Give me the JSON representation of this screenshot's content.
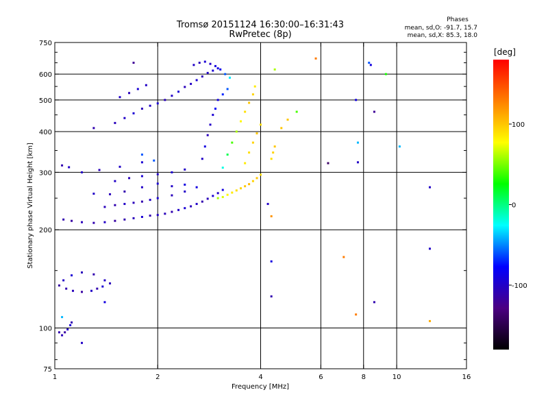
{
  "header": {
    "title_line1": "Tromsø 20151124 16:30:00–16:31:43",
    "title_line2": "RwPretec (8p)"
  },
  "stats": {
    "heading": "Phases",
    "line_o": "mean, sd,O: -91.7, 15.7",
    "line_x": "mean, sd,X:  85.3, 18.0"
  },
  "colorbar": {
    "unit_label": "[deg]",
    "ticks": [
      {
        "value": 100,
        "label": "100"
      },
      {
        "value": 0,
        "label": "0"
      },
      {
        "value": -100,
        "label": "-100"
      }
    ],
    "range": [
      -180,
      180
    ],
    "colors": [
      "#000000",
      "#4b0082",
      "#0000ff",
      "#00ffff",
      "#00ff00",
      "#ffff00",
      "#ff7f00",
      "#ff0000"
    ]
  },
  "chart_data": {
    "type": "scatter",
    "title": "Tromsø 20151124 16:30:00–16:31:43",
    "subtitle": "RwPretec (8p)",
    "xlabel": "Frequency [MHz]",
    "ylabel": "Stationary phase Virtual Height [km]",
    "x_scale": "log",
    "y_scale": "log",
    "xlim": [
      1,
      16
    ],
    "ylim": [
      75,
      750
    ],
    "xticks": [
      {
        "value": 1,
        "label": "1"
      },
      {
        "value": 2,
        "label": "2"
      },
      {
        "value": 4,
        "label": "4"
      },
      {
        "value": 6,
        "label": "6"
      },
      {
        "value": 8,
        "label": "8"
      },
      {
        "value": 10,
        "label": "10"
      },
      {
        "value": 16,
        "label": "16"
      }
    ],
    "xgrid": [
      2,
      4,
      6,
      8,
      10
    ],
    "yticks": [
      {
        "value": 75,
        "label": "75"
      },
      {
        "value": 100,
        "label": "100"
      },
      {
        "value": 200,
        "label": "200"
      },
      {
        "value": 300,
        "label": "300"
      },
      {
        "value": 400,
        "label": "400"
      },
      {
        "value": 500,
        "label": "500"
      },
      {
        "value": 600,
        "label": "600"
      },
      {
        "value": 750,
        "label": "750"
      }
    ],
    "ygrid": [
      100,
      200,
      300,
      400,
      500,
      600
    ],
    "color_by": "phase [deg]",
    "points": [
      [
        1.03,
        97,
        -110
      ],
      [
        1.05,
        95,
        -105
      ],
      [
        1.07,
        97,
        -115
      ],
      [
        1.09,
        99,
        -100
      ],
      [
        1.11,
        102,
        -95
      ],
      [
        1.12,
        104,
        -110
      ],
      [
        1.03,
        135,
        -115
      ],
      [
        1.08,
        132,
        -110
      ],
      [
        1.13,
        130,
        -105
      ],
      [
        1.2,
        129,
        -115
      ],
      [
        1.28,
        130,
        -100
      ],
      [
        1.33,
        132,
        -110
      ],
      [
        1.38,
        134,
        -95
      ],
      [
        1.45,
        137,
        -105
      ],
      [
        1.06,
        140,
        -100
      ],
      [
        1.12,
        145,
        -95
      ],
      [
        1.2,
        148,
        -105
      ],
      [
        1.3,
        146,
        -110
      ],
      [
        1.4,
        140,
        -100
      ],
      [
        1.06,
        215,
        -110
      ],
      [
        1.12,
        213,
        -115
      ],
      [
        1.2,
        211,
        -105
      ],
      [
        1.3,
        210,
        -110
      ],
      [
        1.4,
        211,
        -100
      ],
      [
        1.5,
        213,
        -115
      ],
      [
        1.6,
        215,
        -110
      ],
      [
        1.7,
        217,
        -105
      ],
      [
        1.8,
        219,
        -95
      ],
      [
        1.9,
        221,
        -110
      ],
      [
        2.0,
        222,
        -100
      ],
      [
        2.1,
        224,
        -105
      ],
      [
        2.2,
        227,
        -110
      ],
      [
        2.3,
        230,
        -100
      ],
      [
        2.4,
        233,
        -95
      ],
      [
        2.5,
        236,
        -105
      ],
      [
        2.6,
        240,
        -100
      ],
      [
        2.7,
        244,
        -110
      ],
      [
        2.8,
        249,
        -105
      ],
      [
        2.9,
        254,
        -95
      ],
      [
        3.0,
        259,
        -100
      ],
      [
        3.1,
        265,
        -90
      ],
      [
        1.4,
        235,
        -105
      ],
      [
        1.5,
        238,
        -110
      ],
      [
        1.6,
        240,
        -100
      ],
      [
        1.7,
        242,
        -105
      ],
      [
        1.8,
        244,
        -110
      ],
      [
        1.9,
        247,
        -100
      ],
      [
        2.0,
        250,
        -95
      ],
      [
        2.2,
        255,
        -105
      ],
      [
        2.4,
        262,
        -100
      ],
      [
        2.6,
        270,
        -90
      ],
      [
        1.3,
        258,
        -100
      ],
      [
        1.45,
        257,
        -105
      ],
      [
        1.6,
        262,
        -110
      ],
      [
        1.8,
        270,
        -100
      ],
      [
        2.0,
        277,
        -95
      ],
      [
        2.2,
        272,
        -100
      ],
      [
        2.4,
        275,
        -90
      ],
      [
        1.5,
        282,
        -100
      ],
      [
        1.65,
        288,
        -105
      ],
      [
        1.8,
        292,
        -95
      ],
      [
        2.0,
        296,
        -100
      ],
      [
        2.2,
        300,
        -95
      ],
      [
        2.4,
        306,
        -100
      ],
      [
        1.05,
        315,
        -110
      ],
      [
        1.1,
        311,
        -100
      ],
      [
        1.35,
        305,
        -105
      ],
      [
        1.55,
        312,
        -100
      ],
      [
        1.8,
        322,
        -95
      ],
      [
        1.95,
        326,
        -60
      ],
      [
        1.5,
        425,
        -105
      ],
      [
        1.6,
        440,
        -100
      ],
      [
        1.7,
        455,
        -95
      ],
      [
        1.8,
        470,
        -105
      ],
      [
        1.9,
        480,
        -100
      ],
      [
        2.0,
        488,
        -95
      ],
      [
        2.1,
        500,
        -105
      ],
      [
        2.2,
        515,
        -100
      ],
      [
        2.3,
        530,
        -95
      ],
      [
        2.4,
        548,
        -105
      ],
      [
        2.5,
        560,
        -100
      ],
      [
        2.6,
        575,
        -95
      ],
      [
        2.7,
        590,
        -105
      ],
      [
        2.8,
        605,
        -100
      ],
      [
        2.9,
        615,
        -95
      ],
      [
        3.0,
        625,
        -90
      ],
      [
        1.55,
        510,
        -100
      ],
      [
        1.65,
        525,
        -105
      ],
      [
        1.75,
        540,
        -95
      ],
      [
        1.85,
        555,
        -100
      ],
      [
        2.55,
        640,
        -100
      ],
      [
        2.65,
        650,
        -105
      ],
      [
        2.75,
        655,
        -95
      ],
      [
        2.85,
        645,
        -100
      ],
      [
        2.95,
        635,
        -90
      ],
      [
        3.05,
        620,
        -85
      ],
      [
        3.15,
        600,
        -60
      ],
      [
        3.25,
        585,
        -30
      ],
      [
        2.7,
        330,
        -100
      ],
      [
        2.75,
        360,
        -90
      ],
      [
        2.8,
        390,
        -105
      ],
      [
        2.85,
        420,
        -100
      ],
      [
        2.9,
        450,
        -95
      ],
      [
        2.95,
        470,
        -80
      ],
      [
        3.0,
        500,
        -90
      ],
      [
        3.1,
        520,
        -70
      ],
      [
        3.2,
        540,
        -60
      ],
      [
        3.1,
        310,
        -20
      ],
      [
        3.2,
        340,
        10
      ],
      [
        3.3,
        370,
        40
      ],
      [
        3.4,
        400,
        60
      ],
      [
        3.5,
        430,
        80
      ],
      [
        3.6,
        460,
        90
      ],
      [
        3.7,
        490,
        100
      ],
      [
        3.8,
        520,
        95
      ],
      [
        3.85,
        550,
        85
      ],
      [
        3.0,
        250,
        60
      ],
      [
        3.1,
        252,
        70
      ],
      [
        3.2,
        256,
        80
      ],
      [
        3.3,
        260,
        85
      ],
      [
        3.4,
        264,
        90
      ],
      [
        3.5,
        268,
        95
      ],
      [
        3.6,
        272,
        100
      ],
      [
        3.7,
        276,
        105
      ],
      [
        3.8,
        282,
        95
      ],
      [
        3.9,
        288,
        100
      ],
      [
        4.0,
        295,
        90
      ],
      [
        3.6,
        320,
        85
      ],
      [
        3.7,
        345,
        90
      ],
      [
        3.8,
        370,
        95
      ],
      [
        3.9,
        395,
        100
      ],
      [
        4.0,
        420,
        90
      ],
      [
        4.3,
        330,
        90
      ],
      [
        4.35,
        345,
        95
      ],
      [
        4.4,
        360,
        100
      ],
      [
        1.3,
        410,
        -110
      ],
      [
        1.7,
        650,
        -120
      ],
      [
        1.2,
        300,
        -100
      ],
      [
        1.05,
        108,
        -40
      ],
      [
        1.2,
        90,
        -100
      ],
      [
        1.4,
        120,
        -90
      ],
      [
        1.8,
        340,
        -60
      ],
      [
        4.2,
        240,
        -100
      ],
      [
        4.3,
        220,
        120
      ],
      [
        4.3,
        160,
        -90
      ],
      [
        4.3,
        125,
        -110
      ],
      [
        4.6,
        410,
        100
      ],
      [
        4.4,
        620,
        60
      ],
      [
        4.8,
        435,
        100
      ],
      [
        5.1,
        460,
        40
      ],
      [
        5.8,
        670,
        130
      ],
      [
        6.3,
        320,
        -140
      ],
      [
        7.0,
        165,
        130
      ],
      [
        7.6,
        110,
        130
      ],
      [
        7.6,
        500,
        -90
      ],
      [
        7.7,
        370,
        -40
      ],
      [
        7.7,
        322,
        -100
      ],
      [
        8.3,
        650,
        -60
      ],
      [
        8.4,
        640,
        -90
      ],
      [
        8.6,
        460,
        -120
      ],
      [
        8.6,
        120,
        -110
      ],
      [
        9.3,
        600,
        30
      ],
      [
        10.2,
        360,
        -40
      ],
      [
        12.5,
        270,
        -100
      ],
      [
        12.5,
        175,
        -100
      ],
      [
        12.5,
        105,
        110
      ]
    ]
  }
}
